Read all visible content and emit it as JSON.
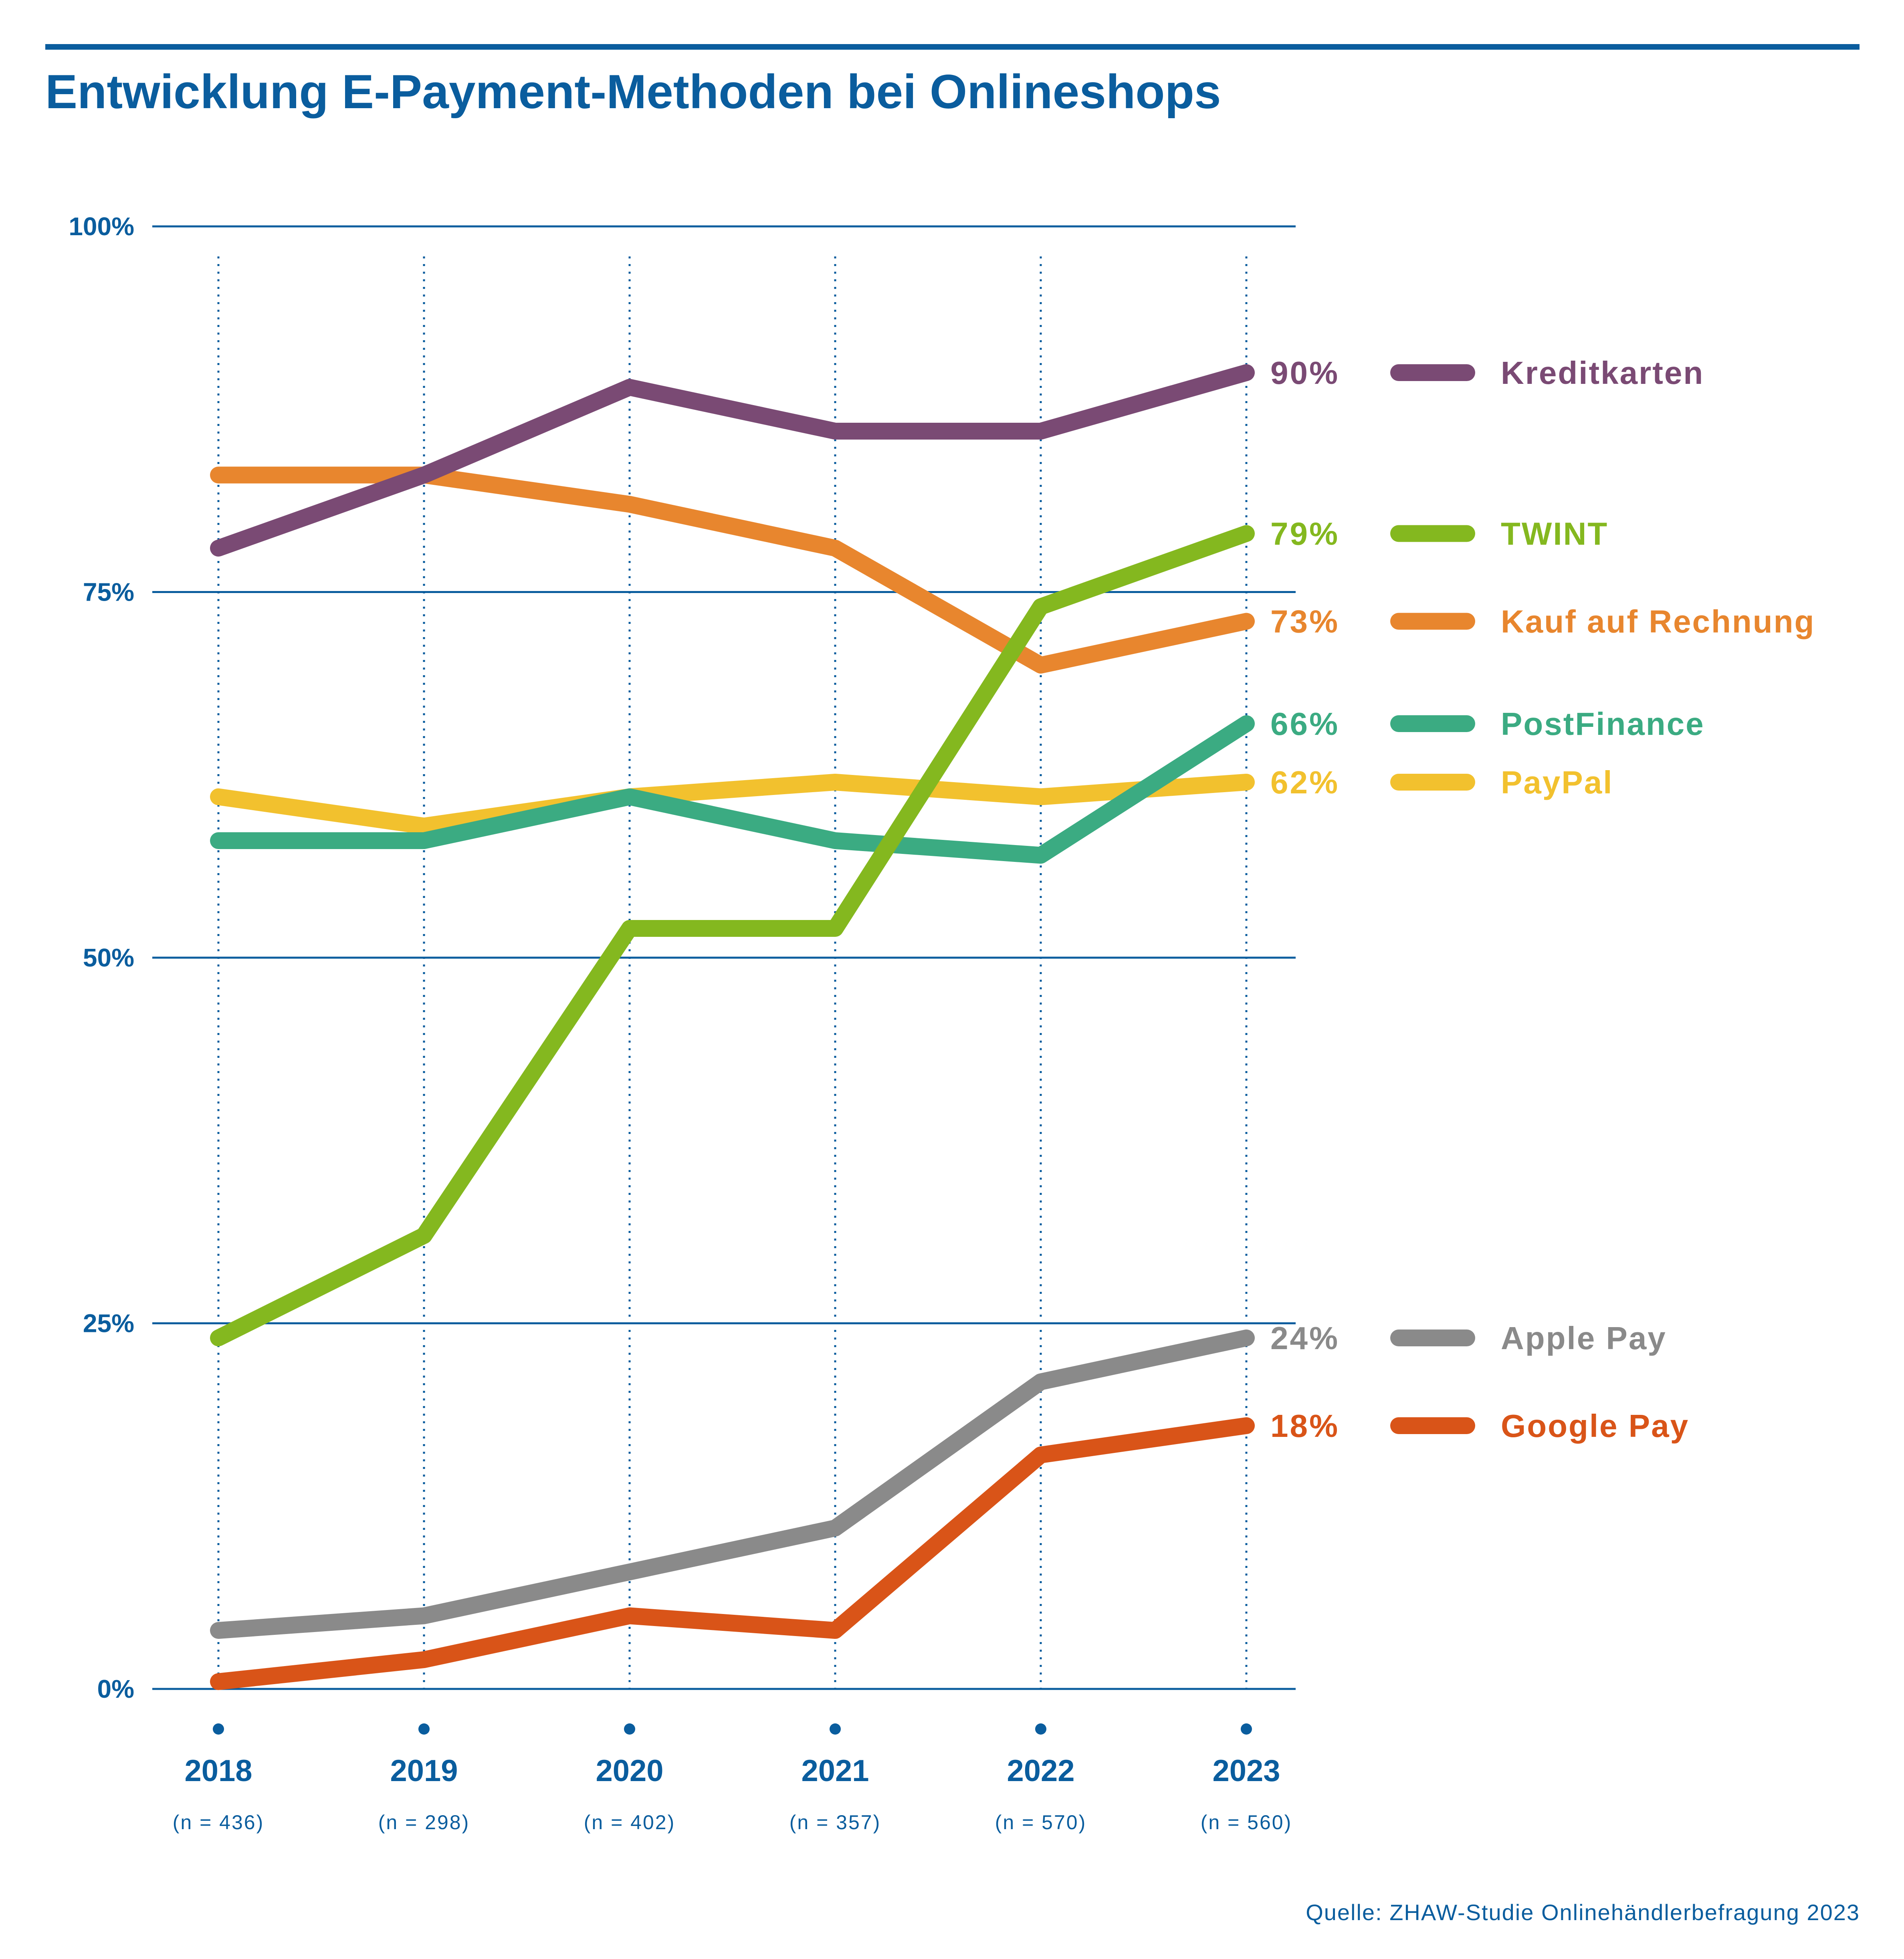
{
  "title": "Entwicklung E-Payment-Methoden bei Onlineshops",
  "source": "Quelle: ZHAW-Studie Onlinehändlerbefragung 2023",
  "chart_data": {
    "type": "line",
    "title": "Entwicklung E-Payment-Methoden bei Onlineshops",
    "xlabel": "",
    "ylabel": "",
    "categories": [
      "2018",
      "2019",
      "2020",
      "2021",
      "2022",
      "2023"
    ],
    "sample_sizes": [
      "(n = 436)",
      "(n = 298)",
      "(n = 402)",
      "(n = 357)",
      "(n = 570)",
      "(n = 560)"
    ],
    "ylim": [
      0,
      100
    ],
    "yticks": [
      0,
      25,
      50,
      75,
      100
    ],
    "ytick_labels": [
      "0%",
      "25%",
      "50%",
      "75%",
      "100%"
    ],
    "grid": "horizontal solid at y ticks, vertical dotted at each year",
    "legend": "right of plot, aligned with line ends",
    "series": [
      {
        "name": "Kreditkarten",
        "end_label": "90%",
        "color": "#7a4a74",
        "values": [
          78,
          83,
          89,
          86,
          86,
          90
        ]
      },
      {
        "name": "TWINT",
        "end_label": "79%",
        "color": "#84b81f",
        "values": [
          24,
          31,
          52,
          52,
          74,
          79
        ]
      },
      {
        "name": "Kauf auf Rechnung",
        "end_label": "73%",
        "color": "#e8862e",
        "values": [
          83,
          83,
          81,
          78,
          70,
          73
        ]
      },
      {
        "name": "PostFinance",
        "end_label": "66%",
        "color": "#3bab82",
        "values": [
          58,
          58,
          61,
          58,
          57,
          66
        ]
      },
      {
        "name": "PayPal",
        "end_label": "62%",
        "color": "#f2c12e",
        "values": [
          61,
          59,
          61,
          62,
          61,
          62
        ]
      },
      {
        "name": "Apple Pay",
        "end_label": "24%",
        "color": "#8a8a8a",
        "values": [
          4,
          5,
          8,
          11,
          21,
          24
        ]
      },
      {
        "name": "Google Pay",
        "end_label": "18%",
        "color": "#d95418",
        "values": [
          0.5,
          2,
          5,
          4,
          16,
          18
        ]
      }
    ],
    "colors": {
      "axis": "#0a5d9e",
      "text": "#0a5d9e"
    }
  }
}
